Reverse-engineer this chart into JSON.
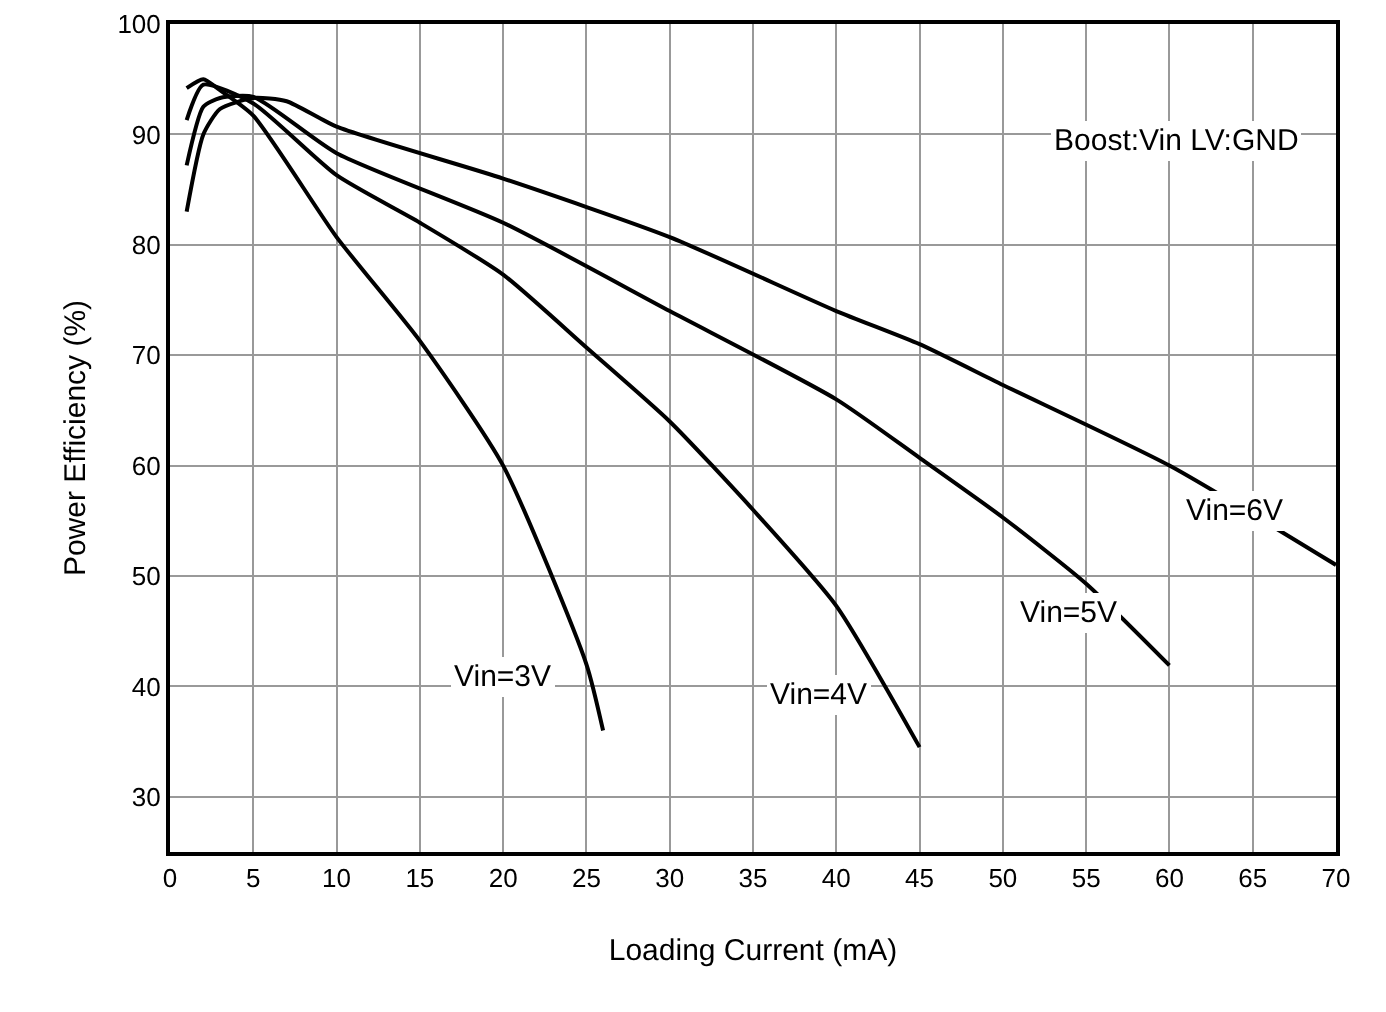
{
  "chart_data": {
    "type": "line",
    "xlabel": "Loading Current (mA)",
    "ylabel": "Power Efficiency (%)",
    "xlim": [
      0,
      70
    ],
    "xticks": [
      0,
      5,
      10,
      15,
      20,
      25,
      30,
      35,
      40,
      45,
      50,
      55,
      60,
      65,
      70
    ],
    "ylim": [
      25,
      100
    ],
    "yticks": [
      30,
      40,
      50,
      60,
      70,
      80,
      90,
      100
    ],
    "grid": true,
    "marker": "none",
    "line_style": "solid",
    "series": [
      {
        "name": "Vin=3V",
        "color": "#000000",
        "x": [
          1,
          2,
          3,
          5,
          10,
          15,
          20,
          25,
          26
        ],
        "values": [
          94.2,
          95,
          94,
          91.7,
          80.7,
          71.3,
          60,
          42,
          36
        ]
      },
      {
        "name": "Vin=4V",
        "color": "#000000",
        "x": [
          1,
          2,
          5,
          10,
          15,
          20,
          25,
          30,
          35,
          40,
          45
        ],
        "values": [
          91.3,
          94.5,
          92.8,
          86.3,
          82,
          77.3,
          70.7,
          64,
          56,
          47.3,
          34.5
        ]
      },
      {
        "name": "Vin=5V",
        "color": "#000000",
        "x": [
          1,
          2,
          3,
          5,
          10,
          20,
          30,
          40,
          45,
          50,
          55,
          60
        ],
        "values": [
          87.2,
          92.5,
          93.3,
          93.4,
          88.3,
          82,
          74,
          66,
          60.7,
          55.3,
          49.3,
          41.9
        ]
      },
      {
        "name": "Vin=6V",
        "color": "#000000",
        "x": [
          1,
          2,
          3,
          5,
          7,
          10,
          20,
          30,
          40,
          45,
          50,
          60,
          70
        ],
        "values": [
          83,
          90,
          92.3,
          93.3,
          93,
          90.7,
          86,
          80.7,
          74,
          71,
          67.3,
          60,
          51
        ]
      }
    ],
    "annotations": [
      "Boost:Vin LV:GND"
    ]
  }
}
